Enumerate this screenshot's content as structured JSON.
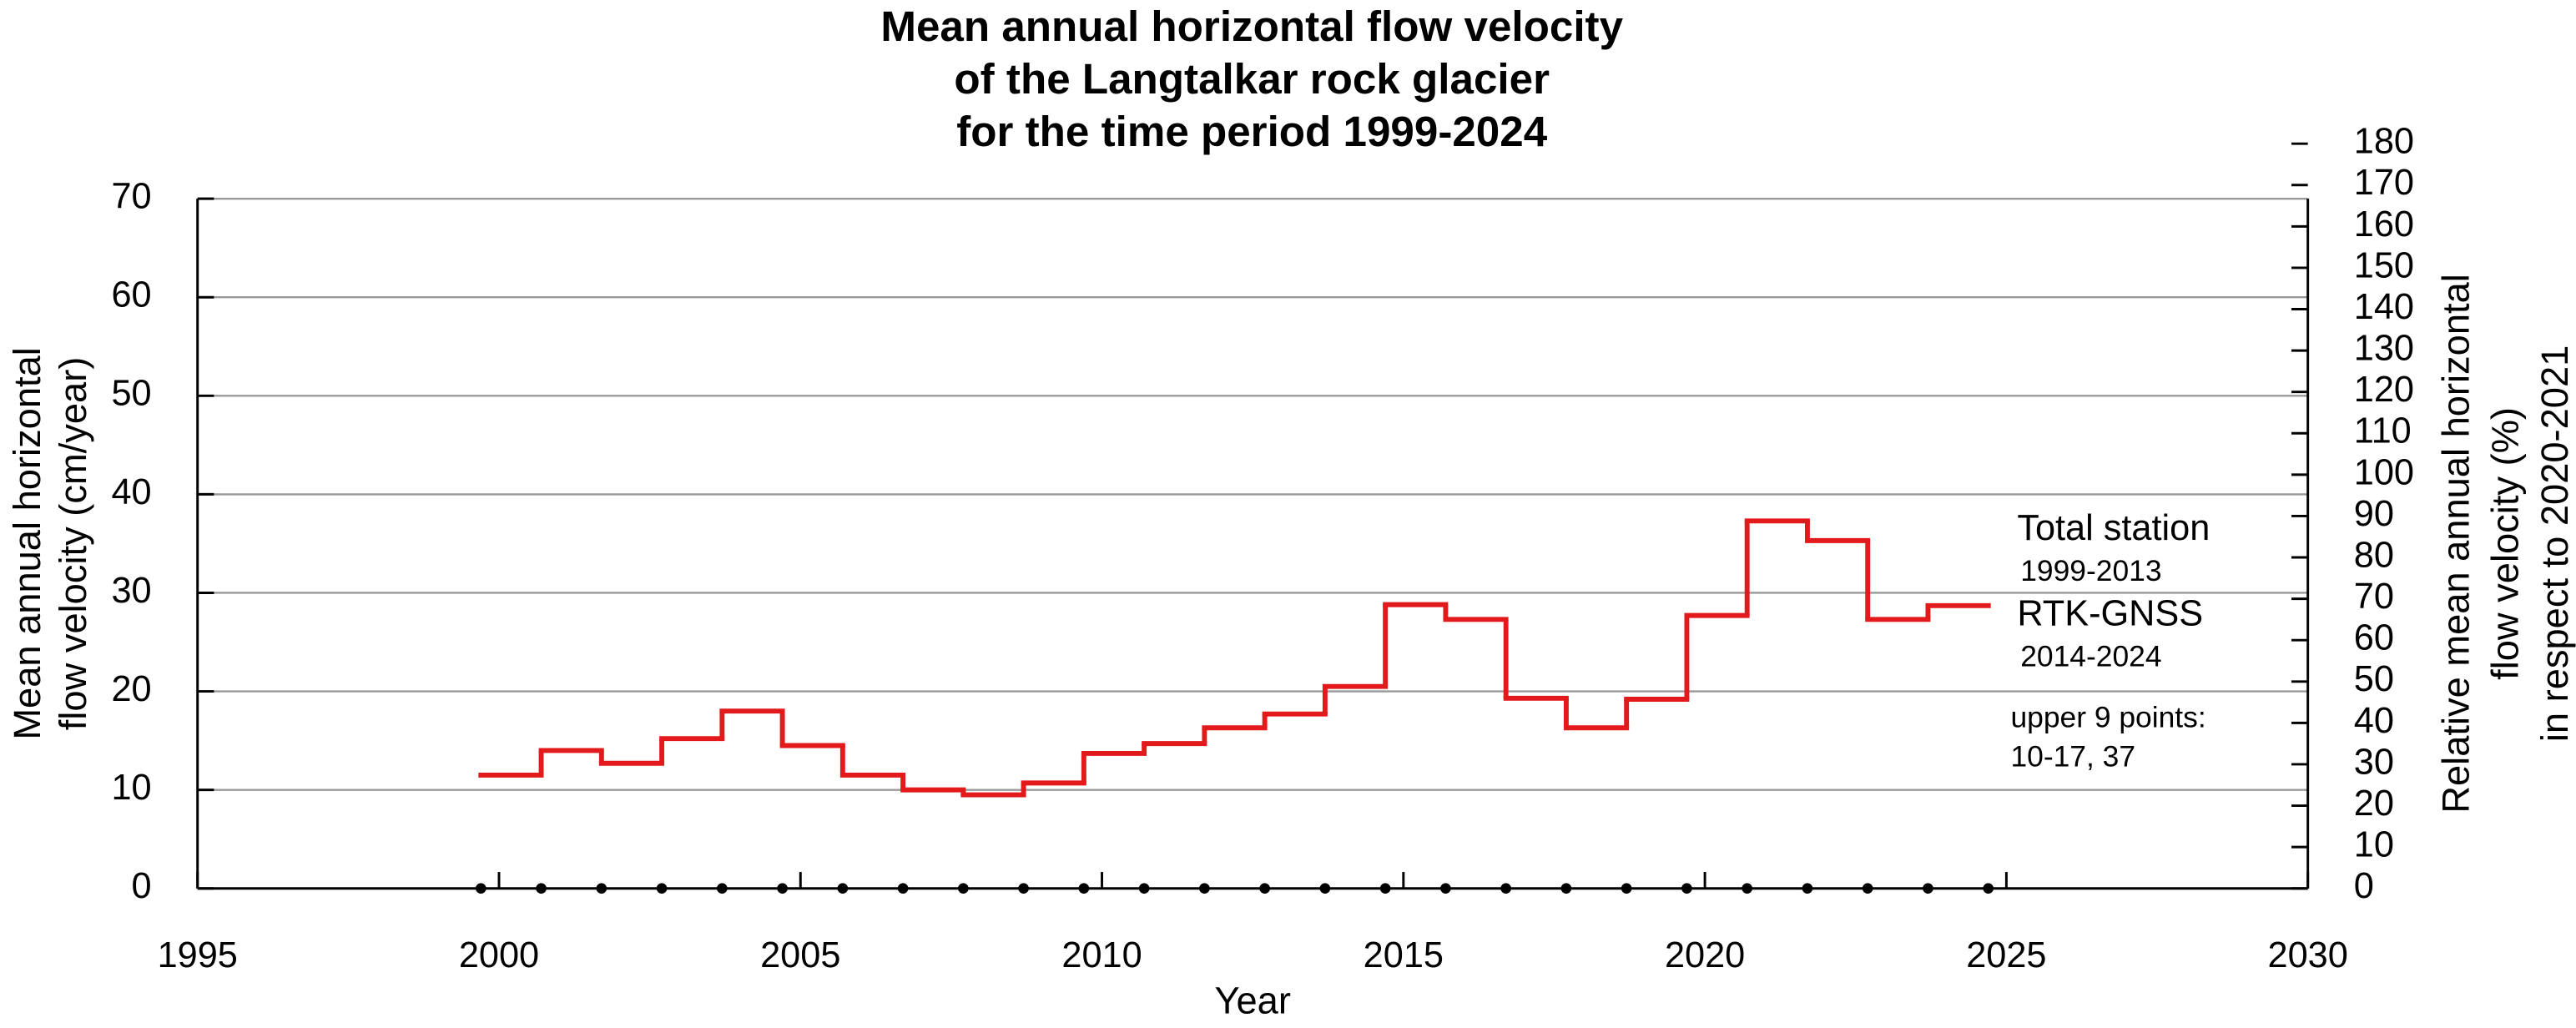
{
  "chart_data": {
    "type": "step",
    "title_lines": [
      "Mean annual horizontal flow velocity",
      "of the Langtalkar rock glacier",
      "for the time period 1999-2024"
    ],
    "xlabel": "Year",
    "ylabel_lines": [
      "Mean annual horizontal",
      "flow velocity (cm/year)"
    ],
    "y2label_lines": [
      "Relative mean annual horizontal",
      "flow velocity (%)",
      "in respect to 2020-2021"
    ],
    "annotations": [
      {
        "text": "Total station",
        "size": "large"
      },
      {
        "text": "1999-2013",
        "size": "small"
      },
      {
        "text": "RTK-GNSS",
        "size": "large"
      },
      {
        "text": "2014-2024",
        "size": "small"
      },
      {
        "text": "upper 9 points:",
        "size": "small"
      },
      {
        "text": "10-17, 37",
        "size": "small"
      }
    ],
    "measurement_dates": [
      1999.7,
      2000.7,
      2001.7,
      2002.7,
      2003.7,
      2004.7,
      2005.7,
      2006.7,
      2007.7,
      2008.7,
      2009.7,
      2010.7,
      2011.7,
      2012.7,
      2013.7,
      2014.7,
      2015.7,
      2016.7,
      2017.7,
      2018.7,
      2019.7,
      2020.7,
      2021.7,
      2022.7,
      2023.7,
      2024.7
    ],
    "series": [
      {
        "color": "#e31a1c",
        "x": [
          1999.7,
          2000.7,
          2001.7,
          2002.7,
          2003.7,
          2004.7,
          2005.7,
          2006.7,
          2007.7,
          2008.7,
          2009.7,
          2010.7,
          2011.7,
          2012.7,
          2013.7,
          2014.7,
          2015.7,
          2016.7,
          2017.7,
          2018.7,
          2019.7,
          2020.7,
          2021.7,
          2022.7,
          2023.7
        ],
        "values": [
          11.5,
          14.0,
          12.7,
          15.2,
          18.0,
          14.5,
          11.5,
          10.0,
          9.5,
          10.7,
          13.7,
          14.7,
          16.3,
          17.7,
          20.5,
          28.8,
          27.3,
          19.3,
          16.3,
          19.2,
          27.7,
          37.3,
          35.3,
          27.3,
          28.7
        ]
      }
    ],
    "xlim": [
      1995,
      2030
    ],
    "xticks": [
      1995,
      2000,
      2005,
      2010,
      2015,
      2020,
      2025,
      2030
    ],
    "ylim": [
      0,
      70
    ],
    "yticks": [
      0,
      10,
      20,
      30,
      40,
      50,
      60,
      70
    ],
    "y2lim": [
      0,
      166.7
    ],
    "y2ticks": [
      0,
      10,
      20,
      30,
      40,
      50,
      60,
      70,
      80,
      90,
      100,
      110,
      120,
      130,
      140,
      150,
      160,
      170,
      180
    ],
    "grid": true
  }
}
